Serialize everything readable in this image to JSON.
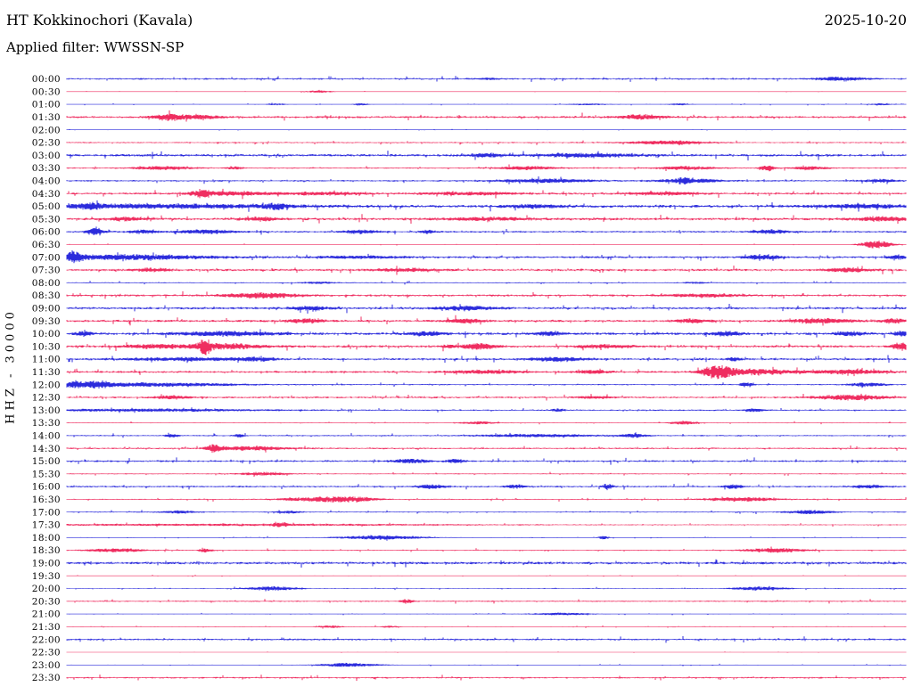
{
  "header": {
    "title": "HT Kokkinochori (Kavala)",
    "date": "2025-10-20",
    "filter_label": "Applied filter: WWSSN-SP"
  },
  "y_axis_label": "HHZ - 30000",
  "colors": {
    "blue": "#1414d8",
    "red": "#ee164e",
    "text": "#000000",
    "background": "#ffffff"
  },
  "chart_data": {
    "type": "line",
    "title": "HT Kokkinochori (Kavala)",
    "subtitle": "Applied filter: WWSSN-SP",
    "date": "2025-10-20",
    "ylabel": "HHZ - 30000",
    "row_interval_minutes": 30,
    "grid": false,
    "legend": "none",
    "x_axis": "minutes within each half-hour line (0-30)",
    "rows": [
      {
        "time": "00:00",
        "color": "blue",
        "noise": 0.7,
        "events": [
          [
            0.5,
            1.0,
            0.01
          ],
          [
            0.92,
            2.2,
            0.02
          ]
        ]
      },
      {
        "time": "00:30",
        "color": "red",
        "noise": 0.2,
        "events": [
          [
            0.3,
            1.3,
            0.012
          ]
        ]
      },
      {
        "time": "01:00",
        "color": "blue",
        "noise": 0.25,
        "events": [
          [
            0.25,
            1.0,
            0.008
          ],
          [
            0.35,
            1.2,
            0.006
          ],
          [
            0.62,
            0.8,
            0.02
          ],
          [
            0.73,
            0.9,
            0.01
          ],
          [
            0.97,
            1.0,
            0.01
          ]
        ]
      },
      {
        "time": "01:30",
        "color": "red",
        "noise": 0.9,
        "events": [
          [
            0.12,
            3.2,
            0.012
          ],
          [
            0.155,
            2.2,
            0.02
          ],
          [
            0.685,
            2.2,
            0.02
          ]
        ]
      },
      {
        "time": "02:00",
        "color": "blue",
        "noise": 0.18,
        "events": []
      },
      {
        "time": "02:30",
        "color": "red",
        "noise": 0.55,
        "events": [
          [
            0.715,
            1.9,
            0.035
          ]
        ]
      },
      {
        "time": "03:00",
        "color": "blue",
        "noise": 1.0,
        "events": [
          [
            0.5,
            1.9,
            0.015
          ],
          [
            0.62,
            1.9,
            0.04
          ]
        ]
      },
      {
        "time": "03:30",
        "color": "red",
        "noise": 0.55,
        "events": [
          [
            0.115,
            1.9,
            0.025
          ],
          [
            0.2,
            1.5,
            0.008
          ],
          [
            0.55,
            1.9,
            0.025
          ],
          [
            0.74,
            1.9,
            0.025
          ],
          [
            0.835,
            3.2,
            0.006
          ],
          [
            0.885,
            1.9,
            0.015
          ]
        ]
      },
      {
        "time": "04:00",
        "color": "blue",
        "noise": 0.65,
        "events": [
          [
            0.57,
            2.1,
            0.04
          ],
          [
            0.735,
            2.6,
            0.005
          ],
          [
            0.74,
            1.9,
            0.03
          ],
          [
            0.97,
            1.6,
            0.015
          ]
        ]
      },
      {
        "time": "04:30",
        "color": "red",
        "noise": 0.85,
        "events": [
          [
            0.16,
            4.0,
            0.008
          ],
          [
            0.2,
            2.0,
            0.035
          ],
          [
            0.31,
            1.6,
            0.03
          ],
          [
            0.48,
            1.7,
            0.04
          ],
          [
            0.71,
            1.6,
            0.03
          ]
        ]
      },
      {
        "time": "05:00",
        "color": "blue",
        "noise": 1.15,
        "events": [
          [
            0.03,
            2.4,
            0.008
          ],
          [
            0.1,
            2.0,
            0.12
          ],
          [
            0.25,
            2.8,
            0.01
          ],
          [
            0.56,
            1.5,
            0.025
          ],
          [
            0.95,
            1.8,
            0.04
          ]
        ]
      },
      {
        "time": "05:30",
        "color": "red",
        "noise": 1.05,
        "events": [
          [
            0.07,
            1.9,
            0.015
          ],
          [
            0.23,
            1.9,
            0.015
          ],
          [
            0.5,
            1.6,
            0.035
          ],
          [
            0.97,
            2.1,
            0.025
          ]
        ]
      },
      {
        "time": "06:00",
        "color": "blue",
        "noise": 0.75,
        "events": [
          [
            0.034,
            4.5,
            0.007
          ],
          [
            0.09,
            2.1,
            0.012
          ],
          [
            0.165,
            2.1,
            0.025
          ],
          [
            0.35,
            1.9,
            0.015
          ],
          [
            0.43,
            2.0,
            0.006
          ],
          [
            0.84,
            2.1,
            0.015
          ]
        ]
      },
      {
        "time": "06:30",
        "color": "red",
        "noise": 0.22,
        "events": [
          [
            0.965,
            4.5,
            0.013
          ]
        ]
      },
      {
        "time": "07:00",
        "color": "blue",
        "noise": 0.85,
        "events": [
          [
            0.008,
            5.0,
            0.006
          ],
          [
            0.07,
            2.9,
            0.07
          ],
          [
            0.35,
            1.3,
            0.04
          ],
          [
            0.83,
            2.6,
            0.015
          ],
          [
            0.99,
            2.1,
            0.008
          ]
        ]
      },
      {
        "time": "07:30",
        "color": "red",
        "noise": 0.95,
        "events": [
          [
            0.1,
            1.7,
            0.015
          ],
          [
            0.4,
            1.6,
            0.025
          ],
          [
            0.93,
            2.1,
            0.018
          ]
        ]
      },
      {
        "time": "08:00",
        "color": "blue",
        "noise": 0.45,
        "events": [
          [
            0.3,
            1.1,
            0.015
          ],
          [
            0.75,
            1.0,
            0.01
          ]
        ]
      },
      {
        "time": "08:30",
        "color": "red",
        "noise": 0.85,
        "events": [
          [
            0.235,
            2.9,
            0.03
          ],
          [
            0.76,
            1.6,
            0.035
          ]
        ]
      },
      {
        "time": "09:00",
        "color": "blue",
        "noise": 0.95,
        "events": [
          [
            0.29,
            2.1,
            0.015
          ],
          [
            0.475,
            2.1,
            0.025
          ]
        ]
      },
      {
        "time": "09:30",
        "color": "red",
        "noise": 0.95,
        "events": [
          [
            0.285,
            2.3,
            0.015
          ],
          [
            0.475,
            2.3,
            0.015
          ],
          [
            0.745,
            1.9,
            0.015
          ],
          [
            0.9,
            2.6,
            0.025
          ],
          [
            0.985,
            2.3,
            0.012
          ]
        ]
      },
      {
        "time": "10:00",
        "color": "blue",
        "noise": 1.05,
        "events": [
          [
            0.02,
            1.9,
            0.008
          ],
          [
            0.19,
            2.3,
            0.04
          ],
          [
            0.43,
            2.1,
            0.015
          ],
          [
            0.575,
            1.9,
            0.012
          ],
          [
            0.785,
            2.1,
            0.012
          ],
          [
            0.935,
            2.1,
            0.012
          ],
          [
            0.995,
            2.6,
            0.006
          ]
        ]
      },
      {
        "time": "10:30",
        "color": "red",
        "noise": 0.95,
        "events": [
          [
            0.1,
            1.9,
            0.025
          ],
          [
            0.165,
            9.0,
            0.004
          ],
          [
            0.185,
            3.0,
            0.035
          ],
          [
            0.455,
            1.6,
            0.006
          ],
          [
            0.49,
            3.2,
            0.015
          ],
          [
            0.64,
            1.6,
            0.025
          ],
          [
            0.995,
            3.8,
            0.008
          ]
        ]
      },
      {
        "time": "11:00",
        "color": "blue",
        "noise": 0.85,
        "events": [
          [
            0.14,
            1.7,
            0.05
          ],
          [
            0.225,
            2.1,
            0.015
          ],
          [
            0.585,
            2.1,
            0.025
          ],
          [
            0.795,
            1.9,
            0.006
          ]
        ]
      },
      {
        "time": "11:30",
        "color": "red",
        "noise": 0.85,
        "events": [
          [
            0.5,
            1.9,
            0.03
          ],
          [
            0.625,
            1.9,
            0.015
          ],
          [
            0.775,
            6.5,
            0.012
          ],
          [
            0.82,
            3.2,
            0.035
          ],
          [
            0.935,
            2.4,
            0.03
          ]
        ]
      },
      {
        "time": "12:00",
        "color": "blue",
        "noise": 0.55,
        "events": [
          [
            0.01,
            2.6,
            0.015
          ],
          [
            0.04,
            3.0,
            0.008
          ],
          [
            0.1,
            2.2,
            0.07
          ],
          [
            0.81,
            2.7,
            0.005
          ],
          [
            0.955,
            2.1,
            0.015
          ]
        ]
      },
      {
        "time": "12:30",
        "color": "red",
        "noise": 0.75,
        "events": [
          [
            0.125,
            1.9,
            0.015
          ],
          [
            0.63,
            1.6,
            0.015
          ],
          [
            0.935,
            2.9,
            0.03
          ]
        ]
      },
      {
        "time": "13:00",
        "color": "blue",
        "noise": 0.6,
        "events": [
          [
            0.1,
            1.3,
            0.1
          ],
          [
            0.585,
            1.6,
            0.006
          ],
          [
            0.82,
            1.5,
            0.01
          ]
        ]
      },
      {
        "time": "13:30",
        "color": "red",
        "noise": 0.35,
        "events": [
          [
            0.49,
            1.6,
            0.015
          ],
          [
            0.735,
            1.9,
            0.012
          ]
        ]
      },
      {
        "time": "14:00",
        "color": "blue",
        "noise": 0.55,
        "events": [
          [
            0.125,
            2.4,
            0.005
          ],
          [
            0.205,
            1.9,
            0.005
          ],
          [
            0.56,
            1.5,
            0.05
          ],
          [
            0.675,
            1.9,
            0.012
          ]
        ]
      },
      {
        "time": "14:30",
        "color": "red",
        "noise": 0.65,
        "events": [
          [
            0.175,
            3.8,
            0.007
          ],
          [
            0.22,
            2.3,
            0.03
          ]
        ]
      },
      {
        "time": "15:00",
        "color": "blue",
        "noise": 0.75,
        "events": [
          [
            0.41,
            2.4,
            0.015
          ],
          [
            0.465,
            1.9,
            0.008
          ]
        ]
      },
      {
        "time": "15:30",
        "color": "red",
        "noise": 0.45,
        "events": [
          [
            0.235,
            1.9,
            0.02
          ]
        ]
      },
      {
        "time": "16:00",
        "color": "blue",
        "noise": 0.7,
        "events": [
          [
            0.435,
            2.3,
            0.012
          ],
          [
            0.535,
            2.1,
            0.008
          ],
          [
            0.645,
            3.4,
            0.004
          ],
          [
            0.795,
            2.1,
            0.008
          ],
          [
            0.955,
            1.6,
            0.015
          ]
        ]
      },
      {
        "time": "16:30",
        "color": "red",
        "noise": 0.45,
        "events": [
          [
            0.3,
            2.6,
            0.03
          ],
          [
            0.345,
            2.1,
            0.02
          ],
          [
            0.805,
            2.3,
            0.03
          ]
        ]
      },
      {
        "time": "17:00",
        "color": "blue",
        "noise": 0.45,
        "events": [
          [
            0.135,
            1.6,
            0.015
          ],
          [
            0.265,
            1.6,
            0.01
          ],
          [
            0.885,
            2.1,
            0.02
          ]
        ]
      },
      {
        "time": "17:30",
        "color": "red",
        "noise": 0.45,
        "events": [
          [
            0.2,
            0.9,
            0.2
          ],
          [
            0.255,
            1.9,
            0.006
          ]
        ]
      },
      {
        "time": "18:00",
        "color": "blue",
        "noise": 0.3,
        "events": [
          [
            0.375,
            2.3,
            0.035
          ],
          [
            0.64,
            1.9,
            0.005
          ]
        ]
      },
      {
        "time": "18:30",
        "color": "red",
        "noise": 0.45,
        "events": [
          [
            0.06,
            2.1,
            0.025
          ],
          [
            0.165,
            1.9,
            0.006
          ],
          [
            0.845,
            2.6,
            0.025
          ]
        ]
      },
      {
        "time": "19:00",
        "color": "blue",
        "noise": 1.05,
        "events": []
      },
      {
        "time": "19:30",
        "color": "red",
        "noise": 0.22,
        "events": []
      },
      {
        "time": "20:00",
        "color": "blue",
        "noise": 0.35,
        "events": [
          [
            0.245,
            2.3,
            0.022
          ],
          [
            0.825,
            2.1,
            0.022
          ]
        ]
      },
      {
        "time": "20:30",
        "color": "red",
        "noise": 0.55,
        "events": [
          [
            0.405,
            2.3,
            0.005
          ]
        ]
      },
      {
        "time": "21:00",
        "color": "blue",
        "noise": 0.28,
        "events": [
          [
            0.59,
            1.3,
            0.025
          ]
        ]
      },
      {
        "time": "21:30",
        "color": "red",
        "noise": 0.28,
        "events": [
          [
            0.315,
            1.6,
            0.01
          ],
          [
            0.385,
            1.1,
            0.008
          ]
        ]
      },
      {
        "time": "22:00",
        "color": "blue",
        "noise": 0.75,
        "events": []
      },
      {
        "time": "22:30",
        "color": "red",
        "noise": 0.14,
        "events": []
      },
      {
        "time": "23:00",
        "color": "blue",
        "noise": 0.28,
        "events": [
          [
            0.335,
            2.1,
            0.025
          ]
        ]
      },
      {
        "time": "23:30",
        "color": "red",
        "noise": 0.65,
        "events": []
      }
    ]
  }
}
